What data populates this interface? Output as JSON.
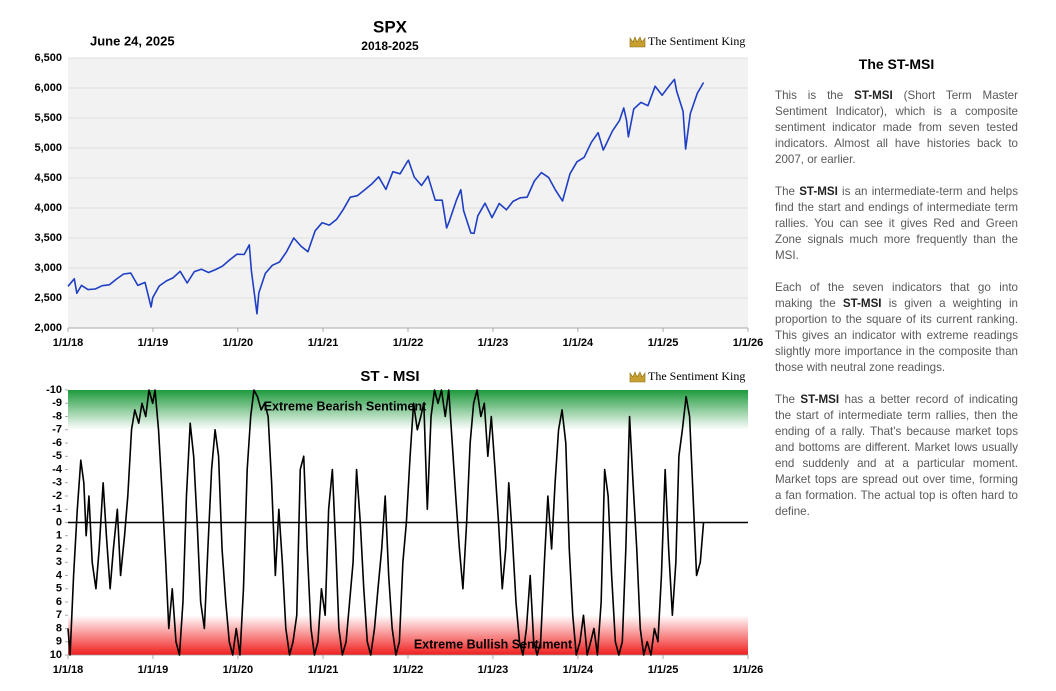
{
  "chart_data": [
    {
      "type": "line",
      "title": "SPX",
      "subtitle": "2018-2025",
      "date": "June 24, 2025",
      "logo": "The Sentiment King",
      "x": [
        "2018-01-01",
        "2018-01-28",
        "2018-02-08",
        "2018-02-28",
        "2018-03-28",
        "2018-04-28",
        "2018-05-28",
        "2018-06-28",
        "2018-07-28",
        "2018-08-28",
        "2018-09-28",
        "2018-10-28",
        "2018-11-28",
        "2018-12-24",
        "2018-12-31",
        "2019-01-28",
        "2019-02-28",
        "2019-03-28",
        "2019-04-28",
        "2019-05-28",
        "2019-06-28",
        "2019-07-28",
        "2019-08-28",
        "2019-09-28",
        "2019-10-28",
        "2019-11-28",
        "2019-12-28",
        "2020-01-28",
        "2020-02-19",
        "2020-02-28",
        "2020-03-23",
        "2020-03-31",
        "2020-04-28",
        "2020-05-28",
        "2020-06-28",
        "2020-07-28",
        "2020-08-28",
        "2020-09-28",
        "2020-10-28",
        "2020-11-28",
        "2020-12-28",
        "2021-01-28",
        "2021-02-28",
        "2021-03-28",
        "2021-04-28",
        "2021-05-28",
        "2021-06-28",
        "2021-07-28",
        "2021-08-28",
        "2021-09-28",
        "2021-10-28",
        "2021-11-28",
        "2021-12-28",
        "2022-01-03",
        "2022-01-28",
        "2022-02-28",
        "2022-03-28",
        "2022-04-28",
        "2022-05-28",
        "2022-06-16",
        "2022-06-28",
        "2022-07-28",
        "2022-08-16",
        "2022-08-28",
        "2022-09-28",
        "2022-10-12",
        "2022-10-28",
        "2022-11-28",
        "2022-12-28",
        "2023-01-28",
        "2023-02-28",
        "2023-03-28",
        "2023-04-28",
        "2023-05-28",
        "2023-06-28",
        "2023-07-28",
        "2023-08-28",
        "2023-09-28",
        "2023-10-27",
        "2023-11-28",
        "2023-12-28",
        "2024-01-28",
        "2024-02-28",
        "2024-03-28",
        "2024-04-19",
        "2024-04-28",
        "2024-05-28",
        "2024-06-28",
        "2024-07-16",
        "2024-07-28",
        "2024-08-05",
        "2024-08-28",
        "2024-09-28",
        "2024-10-28",
        "2024-11-28",
        "2024-12-28",
        "2025-01-28",
        "2025-02-19",
        "2025-02-28",
        "2025-03-28",
        "2025-04-08",
        "2025-04-28",
        "2025-05-28",
        "2025-06-24"
      ],
      "series": [
        {
          "color": "#1f3fc4",
          "values": [
            2695,
            2820,
            2580,
            2710,
            2640,
            2650,
            2705,
            2720,
            2815,
            2900,
            2915,
            2710,
            2760,
            2350,
            2505,
            2700,
            2785,
            2835,
            2945,
            2750,
            2940,
            2980,
            2925,
            2975,
            3035,
            3140,
            3230,
            3225,
            3386,
            2955,
            2237,
            2585,
            2910,
            3045,
            3100,
            3270,
            3500,
            3365,
            3270,
            3620,
            3755,
            3715,
            3810,
            3970,
            4180,
            4205,
            4300,
            4395,
            4520,
            4310,
            4605,
            4570,
            4765,
            4796,
            4515,
            4375,
            4530,
            4130,
            4130,
            3667,
            3785,
            4130,
            4305,
            3955,
            3585,
            3577,
            3870,
            4080,
            3840,
            4075,
            3970,
            4110,
            4170,
            4180,
            4450,
            4590,
            4510,
            4290,
            4117,
            4570,
            4770,
            4845,
            5095,
            5255,
            4967,
            5035,
            5280,
            5460,
            5667,
            5460,
            5186,
            5650,
            5760,
            5705,
            6030,
            5880,
            6040,
            6144,
            5955,
            5610,
            4982,
            5570,
            5910,
            6092
          ]
        }
      ],
      "xlim": [
        "2018-01-01",
        "2026-01-01"
      ],
      "xticks": [
        {
          "value": "2018-01-01",
          "label": "1/1/18"
        },
        {
          "value": "2019-01-01",
          "label": "1/1/19"
        },
        {
          "value": "2020-01-01",
          "label": "1/1/20"
        },
        {
          "value": "2021-01-01",
          "label": "1/1/21"
        },
        {
          "value": "2022-01-01",
          "label": "1/1/22"
        },
        {
          "value": "2023-01-01",
          "label": "1/1/23"
        },
        {
          "value": "2024-01-01",
          "label": "1/1/24"
        },
        {
          "value": "2025-01-01",
          "label": "1/1/25"
        },
        {
          "value": "2026-01-01",
          "label": "1/1/26"
        }
      ],
      "ylim": [
        2000,
        6500
      ],
      "yticks": [
        {
          "value": 2000,
          "label": "2,000"
        },
        {
          "value": 2500,
          "label": "2,500"
        },
        {
          "value": 3000,
          "label": "3,000"
        },
        {
          "value": 3500,
          "label": "3,500"
        },
        {
          "value": 4000,
          "label": "4,000"
        },
        {
          "value": 4500,
          "label": "4,500"
        },
        {
          "value": 5000,
          "label": "5,000"
        },
        {
          "value": 5500,
          "label": "5,500"
        },
        {
          "value": 6000,
          "label": "6,000"
        },
        {
          "value": 6500,
          "label": "6,500"
        }
      ],
      "plot_background": "#f2f2f2",
      "grid": true
    },
    {
      "type": "line",
      "title": "ST - MSI",
      "logo": "The Sentiment King",
      "x": [
        "2018-01-01",
        "2018-01-10",
        "2018-01-25",
        "2018-02-10",
        "2018-02-25",
        "2018-03-10",
        "2018-03-20",
        "2018-04-01",
        "2018-04-15",
        "2018-05-01",
        "2018-05-15",
        "2018-06-01",
        "2018-06-15",
        "2018-07-01",
        "2018-07-15",
        "2018-08-01",
        "2018-08-15",
        "2018-09-01",
        "2018-09-15",
        "2018-10-01",
        "2018-10-15",
        "2018-11-01",
        "2018-11-15",
        "2018-12-01",
        "2018-12-15",
        "2018-12-31",
        "2019-01-10",
        "2019-01-25",
        "2019-02-10",
        "2019-02-25",
        "2019-03-10",
        "2019-03-25",
        "2019-04-10",
        "2019-04-25",
        "2019-05-10",
        "2019-05-25",
        "2019-06-10",
        "2019-06-25",
        "2019-07-10",
        "2019-07-25",
        "2019-08-10",
        "2019-08-25",
        "2019-09-10",
        "2019-09-25",
        "2019-10-10",
        "2019-10-25",
        "2019-11-10",
        "2019-11-25",
        "2019-12-10",
        "2019-12-25",
        "2020-01-10",
        "2020-01-25",
        "2020-02-10",
        "2020-02-25",
        "2020-03-10",
        "2020-03-25",
        "2020-04-10",
        "2020-04-25",
        "2020-05-10",
        "2020-05-25",
        "2020-06-10",
        "2020-06-25",
        "2020-07-10",
        "2020-07-25",
        "2020-08-10",
        "2020-08-25",
        "2020-09-10",
        "2020-09-25",
        "2020-10-10",
        "2020-10-25",
        "2020-11-10",
        "2020-11-25",
        "2020-12-10",
        "2020-12-25",
        "2021-01-10",
        "2021-01-25",
        "2021-02-10",
        "2021-02-25",
        "2021-03-10",
        "2021-03-25",
        "2021-04-10",
        "2021-04-25",
        "2021-05-10",
        "2021-05-25",
        "2021-06-10",
        "2021-06-25",
        "2021-07-10",
        "2021-07-25",
        "2021-08-10",
        "2021-08-25",
        "2021-09-10",
        "2021-09-25",
        "2021-10-10",
        "2021-10-25",
        "2021-11-10",
        "2021-11-25",
        "2021-12-10",
        "2021-12-25",
        "2022-01-10",
        "2022-01-25",
        "2022-02-10",
        "2022-02-25",
        "2022-03-10",
        "2022-03-25",
        "2022-04-10",
        "2022-04-25",
        "2022-05-10",
        "2022-05-25",
        "2022-06-10",
        "2022-06-25",
        "2022-07-10",
        "2022-07-25",
        "2022-08-10",
        "2022-08-25",
        "2022-09-10",
        "2022-09-25",
        "2022-10-10",
        "2022-10-25",
        "2022-11-10",
        "2022-11-25",
        "2022-12-10",
        "2022-12-25",
        "2023-01-10",
        "2023-01-25",
        "2023-02-10",
        "2023-02-25",
        "2023-03-10",
        "2023-03-25",
        "2023-04-10",
        "2023-04-25",
        "2023-05-10",
        "2023-05-25",
        "2023-06-10",
        "2023-06-25",
        "2023-07-10",
        "2023-07-25",
        "2023-08-10",
        "2023-08-25",
        "2023-09-10",
        "2023-09-25",
        "2023-10-10",
        "2023-10-25",
        "2023-11-10",
        "2023-11-25",
        "2023-12-10",
        "2023-12-25",
        "2024-01-10",
        "2024-01-25",
        "2024-02-10",
        "2024-02-25",
        "2024-03-10",
        "2024-03-25",
        "2024-04-10",
        "2024-04-25",
        "2024-05-10",
        "2024-05-25",
        "2024-06-10",
        "2024-06-25",
        "2024-07-10",
        "2024-07-25",
        "2024-08-10",
        "2024-08-25",
        "2024-09-10",
        "2024-09-25",
        "2024-10-10",
        "2024-10-25",
        "2024-11-10",
        "2024-11-25",
        "2024-12-10",
        "2024-12-25",
        "2025-01-10",
        "2025-01-25",
        "2025-02-10",
        "2025-02-25",
        "2025-03-10",
        "2025-03-25",
        "2025-04-10",
        "2025-04-25",
        "2025-05-10",
        "2025-05-25",
        "2025-06-10",
        "2025-06-24"
      ],
      "series": [
        {
          "color": "#000000",
          "values": [
            8,
            10,
            4,
            -1,
            -4.7,
            -3,
            1,
            -2,
            3,
            5,
            2,
            -3,
            1,
            5,
            2,
            -1,
            4,
            1,
            -2,
            -7,
            -8.5,
            -7.5,
            -9,
            -8,
            -10,
            -9,
            -10,
            -7,
            -2,
            3,
            8,
            5,
            9,
            10,
            6,
            -2,
            -7.5,
            -5,
            0,
            6,
            8,
            2,
            -4,
            -7,
            -5,
            2,
            6,
            9,
            10,
            8,
            10,
            5,
            -4,
            -8,
            -10,
            -9.5,
            -8.5,
            -9,
            -8,
            -3,
            4,
            -1,
            3,
            8,
            10,
            9,
            7,
            -4,
            -5,
            2,
            8,
            10,
            9,
            5,
            7,
            -1,
            -4,
            2,
            8,
            10,
            9,
            6,
            3,
            -4,
            0,
            5,
            9,
            10,
            8,
            5,
            2,
            -2,
            4,
            8,
            10,
            9,
            3,
            0,
            -5,
            -9,
            -7,
            -8,
            -9,
            -1,
            -8,
            -10,
            -9,
            -10,
            -8,
            -10,
            -6,
            -2,
            2,
            5,
            0,
            -6,
            -9,
            -10,
            -8,
            -9,
            -5,
            -8,
            -4,
            0,
            5,
            2,
            -3,
            1,
            6,
            9,
            10,
            8,
            4,
            9,
            10,
            9,
            3,
            -2,
            2,
            -3,
            -7,
            -8.5,
            -6,
            2,
            7,
            10,
            9,
            7,
            10,
            9,
            8,
            10,
            6,
            -4,
            -2,
            4,
            9,
            10,
            9,
            2,
            -8,
            -3,
            2,
            8,
            10,
            9,
            10,
            8,
            9,
            4,
            -4,
            2,
            7,
            3,
            -5,
            -7,
            -9.5,
            -8,
            -2,
            4,
            3,
            0
          ]
        }
      ],
      "xlim": [
        "2018-01-01",
        "2026-01-01"
      ],
      "xticks": [
        {
          "value": "2018-01-01",
          "label": "1/1/18"
        },
        {
          "value": "2019-01-01",
          "label": "1/1/19"
        },
        {
          "value": "2020-01-01",
          "label": "1/1/20"
        },
        {
          "value": "2021-01-01",
          "label": "1/1/21"
        },
        {
          "value": "2022-01-01",
          "label": "1/1/22"
        },
        {
          "value": "2023-01-01",
          "label": "1/1/23"
        },
        {
          "value": "2024-01-01",
          "label": "1/1/24"
        },
        {
          "value": "2025-01-01",
          "label": "1/1/25"
        },
        {
          "value": "2026-01-01",
          "label": "1/1/26"
        }
      ],
      "ylim": [
        10,
        -10
      ],
      "yticks": [
        -10,
        -9,
        -8,
        -7,
        -6,
        -5,
        -4,
        -3,
        -2,
        -1,
        0,
        1,
        2,
        3,
        4,
        5,
        6,
        7,
        8,
        9,
        10
      ],
      "zones": [
        {
          "from": -10,
          "to": -7,
          "color": "#1e9a3c"
        },
        {
          "from": 10,
          "to": 7,
          "color": "#f01e1e"
        }
      ],
      "reference_line": 0,
      "annotations": [
        {
          "text": "Extreme Bearish Sentiment"
        },
        {
          "text": "Extreme Bullish Sentiment"
        }
      ]
    }
  ],
  "side_panel": {
    "title": "The ST-MSI",
    "paragraphs": [
      [
        "This is the ",
        "ST-MSI",
        " (Short Term Master Sentiment Indicator), which is a composite sentiment indicator made from seven tested indicators. Almost all have histories back to 2007, or earlier."
      ],
      [
        "The ",
        "ST-MSI",
        " is an intermediate-term and helps find the start and endings of intermediate term rallies. You can see it gives Red and Green Zone signals much more frequently than the MSI."
      ],
      [
        "Each of the seven indicators that go into making the ",
        "ST-MSI",
        " is given a weighting in proportion to the square of its current ranking. This gives an indicator with extreme readings slightly more importance in the composite than those with neutral zone readings."
      ],
      [
        "The ",
        "ST-MSI",
        " has a better record of indicating the start of intermediate term rallies, then the ending of a rally. That's because market tops and bottoms are different. Market lows usually end suddenly and at a particular moment. Market tops are spread out over time, forming a fan formation. The actual top is often hard to define."
      ]
    ]
  }
}
